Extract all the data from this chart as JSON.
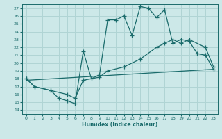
{
  "xlabel": "Humidex (Indice chaleur)",
  "bg_color": "#cce8e8",
  "grid_color": "#b0d4d4",
  "line_color": "#1a6b6b",
  "xlim": [
    -0.5,
    23.5
  ],
  "ylim": [
    13.5,
    27.5
  ],
  "xticks": [
    0,
    1,
    2,
    3,
    4,
    5,
    6,
    7,
    8,
    9,
    10,
    11,
    12,
    13,
    14,
    15,
    16,
    17,
    18,
    19,
    20,
    21,
    22,
    23
  ],
  "yticks": [
    14,
    15,
    16,
    17,
    18,
    19,
    20,
    21,
    22,
    23,
    24,
    25,
    26,
    27
  ],
  "line1_x": [
    0,
    1,
    3,
    4,
    5,
    6,
    7,
    8,
    9,
    10,
    11,
    12,
    13,
    14,
    15,
    16,
    17,
    18,
    19,
    20,
    21,
    22,
    23
  ],
  "line1_y": [
    18.0,
    17.0,
    16.5,
    15.5,
    15.2,
    14.8,
    21.5,
    18.0,
    18.5,
    25.5,
    25.5,
    26.0,
    23.5,
    27.2,
    27.0,
    25.8,
    26.8,
    22.5,
    23.0,
    22.8,
    21.2,
    21.0,
    19.2
  ],
  "line2_x": [
    0,
    1,
    3,
    5,
    6,
    7,
    9,
    10,
    12,
    14,
    16,
    17,
    18,
    19,
    20,
    22,
    23
  ],
  "line2_y": [
    18.0,
    17.0,
    16.5,
    16.0,
    15.5,
    17.8,
    18.2,
    19.0,
    19.5,
    20.5,
    22.0,
    22.5,
    23.0,
    22.5,
    23.0,
    22.0,
    19.5
  ],
  "line3_x": [
    0,
    23
  ],
  "line3_y": [
    17.8,
    19.2
  ],
  "line4_x": [
    0,
    23
  ],
  "line4_y": [
    17.8,
    19.2
  ]
}
